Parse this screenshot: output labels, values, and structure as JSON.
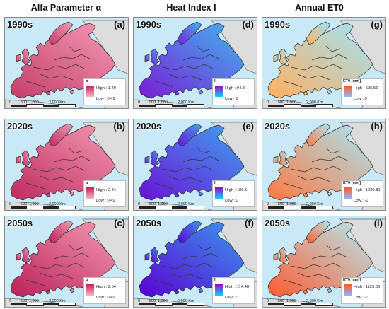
{
  "columns": [
    {
      "title": "Alfa Parameter α"
    },
    {
      "title": "Heat Index I"
    },
    {
      "title": "Annual ET0"
    }
  ],
  "panels": [
    {
      "decade": "1990s",
      "letter": "(a)",
      "legend": {
        "title": "α",
        "high": "High : 1.49",
        "low": "Low : 0.49",
        "gradient": [
          "#c71f5a",
          "#f2b7c7"
        ]
      },
      "fill": [
        "#c53d6a",
        "#f39ab4"
      ]
    },
    {
      "decade": "1990s",
      "letter": "(d)",
      "legend": {
        "title": "I",
        "high": "High : 94.8",
        "low": "Low : 0",
        "gradient": [
          "#a400c8",
          "#00d8ff"
        ]
      },
      "fill": [
        "#7a1bd6",
        "#40b8ef"
      ]
    },
    {
      "decade": "1990s",
      "letter": "(g)",
      "legend": {
        "title": "ET0 [mm]",
        "high": "High : 595.56",
        "low": "Low : 0",
        "gradient": [
          "#ff5a1e",
          "#8fb5ff"
        ]
      },
      "fill": [
        "#ffb060",
        "#9fe3f6"
      ]
    },
    {
      "decade": "2020s",
      "letter": "(b)",
      "legend": {
        "title": "α",
        "high": "High : 2.34",
        "low": "Low : 0.49",
        "gradient": [
          "#c71f5a",
          "#f2b7c7"
        ]
      },
      "fill": [
        "#c02a5f",
        "#f39ab4"
      ]
    },
    {
      "decade": "2020s",
      "letter": "(e)",
      "legend": {
        "title": "I",
        "high": "High : 106.6",
        "low": "Low : 0",
        "gradient": [
          "#a400c8",
          "#00d8ff"
        ]
      },
      "fill": [
        "#6a10d6",
        "#3fa4ef"
      ]
    },
    {
      "decade": "2020s",
      "letter": "(h)",
      "legend": {
        "title": "ET0 [mm]",
        "high": "High : 1030.81",
        "low": "Low : -0",
        "gradient": [
          "#ff5a1e",
          "#8fb5ff"
        ]
      },
      "fill": [
        "#ff7840",
        "#a8e6f2"
      ]
    },
    {
      "decade": "2050s",
      "letter": "(c)",
      "legend": {
        "title": "α",
        "high": "High : 2.54",
        "low": "Low : 0.49",
        "gradient": [
          "#c71f5a",
          "#f2b7c7"
        ]
      },
      "fill": [
        "#bb1f58",
        "#f39ab4"
      ]
    },
    {
      "decade": "2050s",
      "letter": "(f)",
      "legend": {
        "title": "I",
        "high": "High : 114.48",
        "low": "Low : 0",
        "gradient": [
          "#a400c8",
          "#00d8ff"
        ]
      },
      "fill": [
        "#5a00d2",
        "#3b98ef"
      ]
    },
    {
      "decade": "2050s",
      "letter": "(i)",
      "legend": {
        "title": "ET0 [mm]",
        "high": "High : 1129.83",
        "low": "Low : -0",
        "gradient": [
          "#ff5a1e",
          "#8fb5ff"
        ]
      },
      "fill": [
        "#ff5a2e",
        "#b4eaf0"
      ]
    }
  ],
  "scale": {
    "ticks": [
      "0",
      "500",
      "1,000",
      "2,000 Km"
    ]
  },
  "colors": {
    "sea": "#c9e9f6",
    "land_outside": "#dcdcdc",
    "border": "#2a2a2a"
  }
}
